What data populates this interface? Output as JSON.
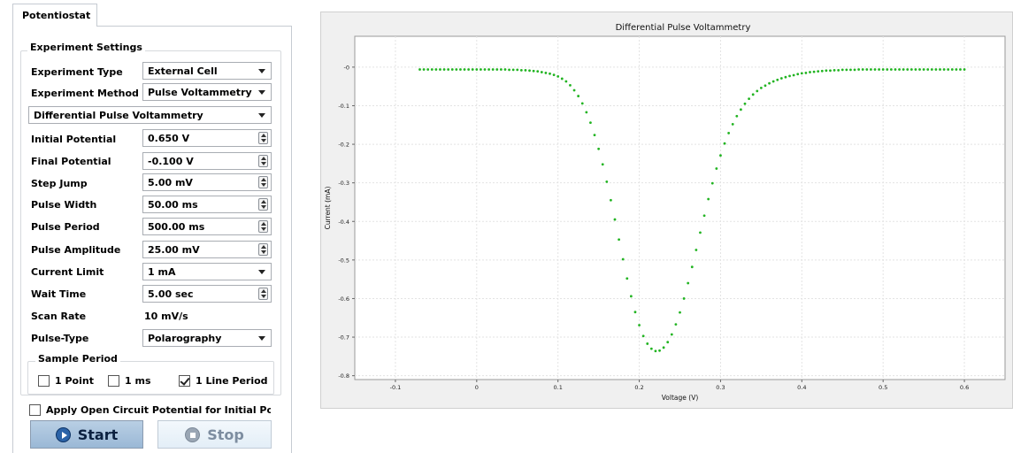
{
  "tab": {
    "label": "Potentiostat"
  },
  "group": {
    "title": "Experiment Settings"
  },
  "settings": {
    "experiment_type": {
      "label": "Experiment Type",
      "value": "External Cell"
    },
    "experiment_method": {
      "label": "Experiment Method",
      "value": "Pulse Voltammetry"
    },
    "technique": {
      "value": "Differential Pulse Voltammetry"
    },
    "initial_potential": {
      "label": "Initial Potential",
      "value": "0.650 V"
    },
    "final_potential": {
      "label": "Final Potential",
      "value": "-0.100 V"
    },
    "step_jump": {
      "label": "Step Jump",
      "value": "5.00 mV"
    },
    "pulse_width": {
      "label": "Pulse Width",
      "value": "50.00 ms"
    },
    "pulse_period": {
      "label": "Pulse Period",
      "value": "500.00 ms"
    },
    "pulse_amplitude": {
      "label": "Pulse Amplitude",
      "value": "25.00 mV"
    },
    "current_limit": {
      "label": "Current Limit",
      "value": "1 mA"
    },
    "wait_time": {
      "label": "Wait Time",
      "value": "5.00 sec"
    },
    "scan_rate": {
      "label": "Scan Rate",
      "value": "10 mV/s"
    },
    "pulse_type": {
      "label": "Pulse-Type",
      "value": "Polarography"
    }
  },
  "sample_period": {
    "title": "Sample Period",
    "options": [
      {
        "label": "1 Point",
        "checked": false
      },
      {
        "label": "1 ms",
        "checked": false
      },
      {
        "label": "1 Line Period",
        "checked": true
      }
    ]
  },
  "open_circuit": {
    "label": "Apply Open Circuit Potential for Initial Potent",
    "checked": false
  },
  "buttons": {
    "start": "Start",
    "stop": "Stop"
  },
  "icons": {
    "start": "play-icon",
    "stop": "stop-icon",
    "dropdown": "chevron-down-icon",
    "spin": "spinner-arrows-icon"
  },
  "colors": {
    "series": "#22b422",
    "start_button": "#9ab8d6",
    "plot_background": "#ffffff"
  },
  "chart_data": {
    "type": "scatter",
    "title": "Differential Pulse Voltammetry",
    "xlabel": "Voltage (V)",
    "ylabel": "Current (mA)",
    "xlim": [
      -0.15,
      0.65
    ],
    "ylim": [
      -0.81,
      0.08
    ],
    "xticks": [
      -0.1,
      0,
      0.1,
      0.2,
      0.3,
      0.4,
      0.5,
      0.6
    ],
    "xtick_labels": [
      "-0.1",
      "0",
      "0.1",
      "0.2",
      "0.3",
      "0.4",
      "0.5",
      "0.6"
    ],
    "yticks": [
      0,
      -0.1,
      -0.2,
      -0.3,
      -0.4,
      -0.5,
      -0.6,
      -0.7,
      -0.8
    ],
    "ytick_labels": [
      "-0",
      "-0.1",
      "-0.2",
      "-0.3",
      "-0.4",
      "-0.5",
      "-0.6",
      "-0.7",
      "-0.8"
    ],
    "grid": true,
    "series": [
      {
        "color": "#22b422",
        "x": [
          -0.07,
          -0.065,
          -0.06,
          -0.055,
          -0.05,
          -0.045,
          -0.04,
          -0.035,
          -0.03,
          -0.025,
          -0.02,
          -0.015,
          -0.01,
          -0.005,
          0,
          0.005,
          0.01,
          0.015,
          0.02,
          0.025,
          0.03,
          0.035,
          0.04,
          0.045,
          0.05,
          0.055,
          0.06,
          0.065,
          0.07,
          0.075,
          0.08,
          0.085,
          0.09,
          0.095,
          0.1,
          0.105,
          0.11,
          0.115,
          0.12,
          0.125,
          0.13,
          0.135,
          0.14,
          0.145,
          0.15,
          0.155,
          0.16,
          0.165,
          0.17,
          0.175,
          0.18,
          0.185,
          0.19,
          0.195,
          0.2,
          0.205,
          0.21,
          0.215,
          0.22,
          0.225,
          0.23,
          0.235,
          0.24,
          0.245,
          0.25,
          0.255,
          0.26,
          0.265,
          0.27,
          0.275,
          0.28,
          0.285,
          0.29,
          0.295,
          0.3,
          0.305,
          0.31,
          0.315,
          0.32,
          0.325,
          0.33,
          0.335,
          0.34,
          0.345,
          0.35,
          0.355,
          0.36,
          0.365,
          0.37,
          0.375,
          0.38,
          0.385,
          0.39,
          0.395,
          0.4,
          0.405,
          0.41,
          0.415,
          0.42,
          0.425,
          0.43,
          0.435,
          0.44,
          0.445,
          0.45,
          0.455,
          0.46,
          0.465,
          0.47,
          0.475,
          0.48,
          0.485,
          0.49,
          0.495,
          0.5,
          0.505,
          0.51,
          0.515,
          0.52,
          0.525,
          0.53,
          0.535,
          0.54,
          0.545,
          0.55,
          0.555,
          0.56,
          0.565,
          0.57,
          0.575,
          0.58,
          0.585,
          0.59,
          0.595,
          0.6
        ],
        "y": [
          -0.006,
          -0.006,
          -0.006,
          -0.006,
          -0.006,
          -0.006,
          -0.006,
          -0.006,
          -0.006,
          -0.006,
          -0.006,
          -0.006,
          -0.006,
          -0.006,
          -0.006,
          -0.006,
          -0.006,
          -0.006,
          -0.006,
          -0.006,
          -0.006,
          -0.006,
          -0.007,
          -0.007,
          -0.007,
          -0.008,
          -0.008,
          -0.009,
          -0.01,
          -0.011,
          -0.013,
          -0.015,
          -0.017,
          -0.02,
          -0.024,
          -0.03,
          -0.037,
          -0.047,
          -0.06,
          -0.075,
          -0.094,
          -0.117,
          -0.144,
          -0.176,
          -0.212,
          -0.252,
          -0.297,
          -0.345,
          -0.395,
          -0.447,
          -0.498,
          -0.548,
          -0.594,
          -0.635,
          -0.669,
          -0.697,
          -0.717,
          -0.73,
          -0.736,
          -0.735,
          -0.727,
          -0.713,
          -0.693,
          -0.667,
          -0.636,
          -0.6,
          -0.56,
          -0.518,
          -0.474,
          -0.429,
          -0.385,
          -0.342,
          -0.301,
          -0.263,
          -0.229,
          -0.198,
          -0.171,
          -0.148,
          -0.127,
          -0.11,
          -0.095,
          -0.082,
          -0.071,
          -0.062,
          -0.054,
          -0.048,
          -0.042,
          -0.037,
          -0.033,
          -0.029,
          -0.026,
          -0.023,
          -0.021,
          -0.018,
          -0.016,
          -0.015,
          -0.013,
          -0.012,
          -0.011,
          -0.01,
          -0.009,
          -0.009,
          -0.008,
          -0.008,
          -0.007,
          -0.007,
          -0.007,
          -0.007,
          -0.006,
          -0.006,
          -0.006,
          -0.006,
          -0.006,
          -0.006,
          -0.006,
          -0.006,
          -0.006,
          -0.006,
          -0.006,
          -0.006,
          -0.006,
          -0.006,
          -0.006,
          -0.006,
          -0.006,
          -0.006,
          -0.006,
          -0.006,
          -0.006,
          -0.006,
          -0.006,
          -0.006,
          -0.006,
          -0.006,
          -0.006
        ]
      }
    ]
  }
}
